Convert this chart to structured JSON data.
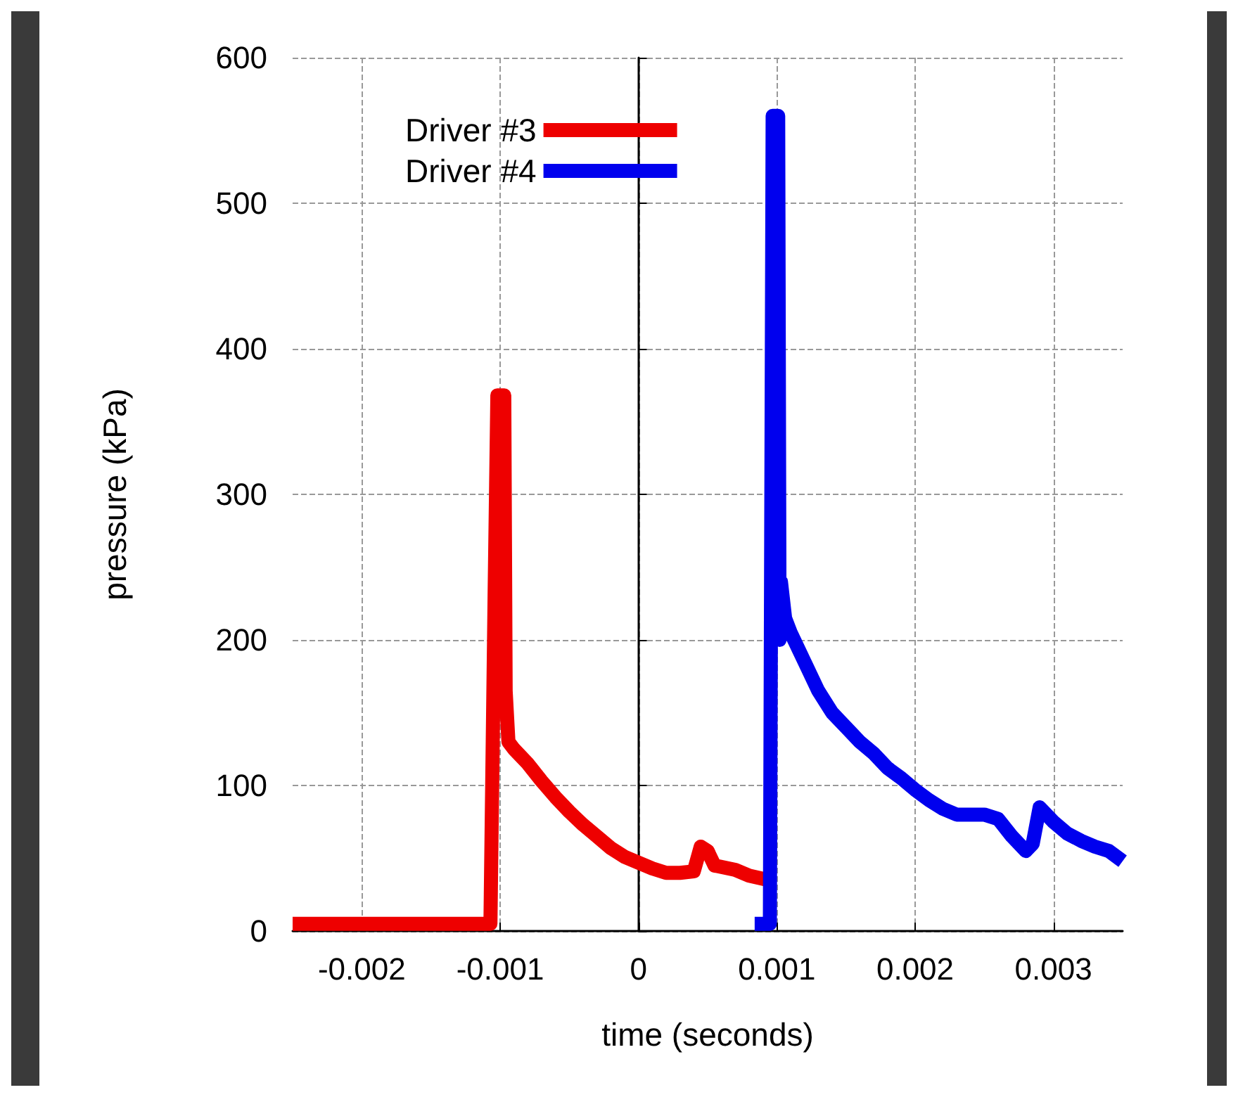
{
  "chart_data": {
    "type": "line",
    "xlabel": "time (seconds)",
    "ylabel": "pressure (kPa)",
    "xlim": [
      -0.0025,
      0.0035
    ],
    "xticks": [
      -0.002,
      -0.001,
      0,
      0.001,
      0.002,
      0.003
    ],
    "ylim": [
      0,
      600
    ],
    "yticks": [
      0,
      100,
      200,
      300,
      400,
      500,
      600
    ],
    "grid": true,
    "legend": "top left",
    "marker": "none",
    "line_style": "solid",
    "series": [
      {
        "name": "Driver #3",
        "color": "#ee0000",
        "x": [
          -0.0025,
          -0.00107,
          -0.00104,
          -0.00102,
          -0.00097,
          -0.00096,
          -0.00094,
          -0.0009,
          -0.0008,
          -0.0007,
          -0.0006,
          -0.0005,
          -0.0004,
          -0.0003,
          -0.0002,
          -0.0001,
          0,
          0.0001,
          0.0002,
          0.0003,
          0.0004,
          0.00045,
          0.0005,
          0.00055,
          0.0007,
          0.0008,
          0.00094
        ],
        "values": [
          5,
          5,
          230,
          368,
          368,
          165,
          130,
          125,
          115,
          103,
          92,
          82,
          73,
          65,
          57,
          51,
          47,
          43,
          40,
          40,
          41,
          58,
          55,
          45,
          42,
          38,
          35
        ]
      },
      {
        "name": "Driver #4",
        "color": "#0000ee",
        "x": [
          0.00084,
          0.00095,
          0.00097,
          0.00101,
          0.00102,
          0.00103,
          0.00106,
          0.0011,
          0.0012,
          0.0013,
          0.0014,
          0.0015,
          0.0016,
          0.0017,
          0.0018,
          0.0019,
          0.002,
          0.0021,
          0.0022,
          0.0023,
          0.0024,
          0.0025,
          0.0026,
          0.0027,
          0.0028,
          0.00285,
          0.0029,
          0.003,
          0.0031,
          0.0032,
          0.0033,
          0.0034,
          0.0035
        ],
        "values": [
          5,
          5,
          560,
          560,
          200,
          240,
          215,
          205,
          185,
          165,
          150,
          140,
          130,
          122,
          112,
          105,
          97,
          90,
          84,
          80,
          80,
          80,
          77,
          65,
          55,
          60,
          85,
          75,
          67,
          62,
          58,
          55,
          48
        ]
      }
    ]
  }
}
